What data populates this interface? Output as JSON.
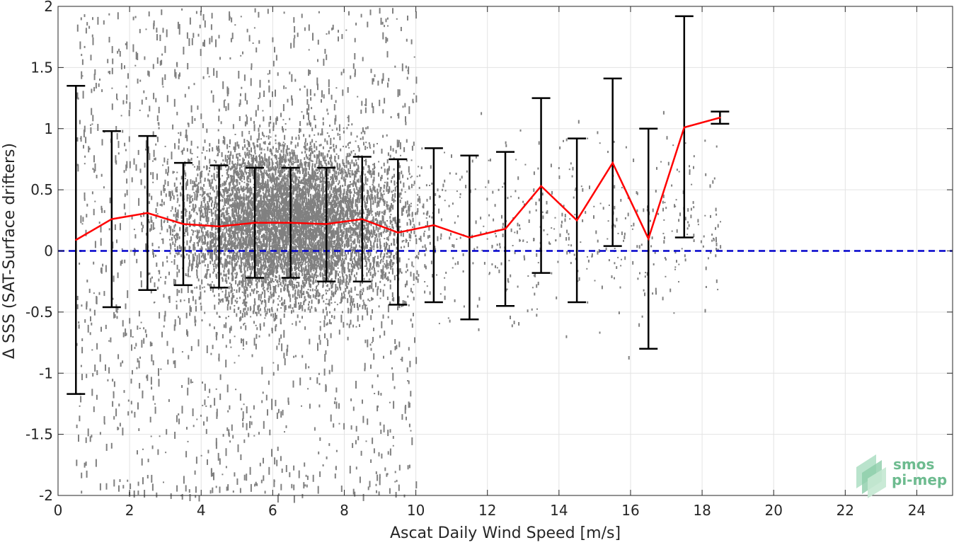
{
  "chart_data": {
    "type": "scatter",
    "title": "",
    "xlabel": "Ascat Daily Wind Speed [m/s]",
    "ylabel": "Δ SSS (SAT-Surface drifters)",
    "xlim": [
      0,
      25
    ],
    "ylim": [
      -2,
      2
    ],
    "xticks": [
      0,
      2,
      4,
      6,
      8,
      10,
      12,
      14,
      16,
      18,
      20,
      22,
      24
    ],
    "yticks": [
      -2,
      -1.5,
      -1,
      -0.5,
      0,
      0.5,
      1,
      1.5,
      2
    ],
    "xtick_labels": [
      "0",
      "2",
      "4",
      "6",
      "8",
      "10",
      "12",
      "14",
      "16",
      "18",
      "20",
      "22",
      "24"
    ],
    "ytick_labels": [
      "-2",
      "-1.5",
      "-1",
      "-0.5",
      "0",
      "0.5",
      "1",
      "1.5",
      "2"
    ],
    "grid": true,
    "scatter_color": "#808080",
    "scatter_description": "dense cloud of individual match-up points, concentrated between 1 and 10 m/s and -0.5 to 1.2 psu",
    "binned_mean": {
      "color": "#ff0000",
      "x": [
        0.5,
        1.5,
        2.5,
        3.5,
        4.5,
        5.5,
        6.5,
        7.5,
        8.5,
        9.5,
        10.5,
        11.5,
        12.5,
        13.5,
        14.5,
        15.5,
        16.5,
        17.5,
        18.5
      ],
      "y": [
        0.09,
        0.26,
        0.31,
        0.22,
        0.2,
        0.23,
        0.23,
        0.22,
        0.26,
        0.15,
        0.21,
        0.11,
        0.18,
        0.53,
        0.25,
        0.72,
        0.1,
        1.01,
        1.09
      ]
    },
    "error_bars": {
      "color": "#000000",
      "lower": [
        -1.17,
        -0.46,
        -0.32,
        -0.28,
        -0.3,
        -0.22,
        -0.22,
        -0.25,
        -0.25,
        -0.44,
        -0.42,
        -0.56,
        -0.45,
        -0.18,
        -0.42,
        0.04,
        -0.8,
        0.11,
        1.04
      ],
      "upper": [
        1.35,
        0.98,
        0.94,
        0.72,
        0.7,
        0.68,
        0.68,
        0.68,
        0.77,
        0.75,
        0.84,
        0.78,
        0.81,
        1.25,
        0.92,
        1.41,
        1.0,
        1.92,
        1.14
      ]
    },
    "reference_line": {
      "y": 0,
      "color": "#0000cc",
      "style": "dashed"
    }
  },
  "logo": {
    "line1": "smos",
    "line2": "pi-mep",
    "color": "#6dbb8f"
  }
}
